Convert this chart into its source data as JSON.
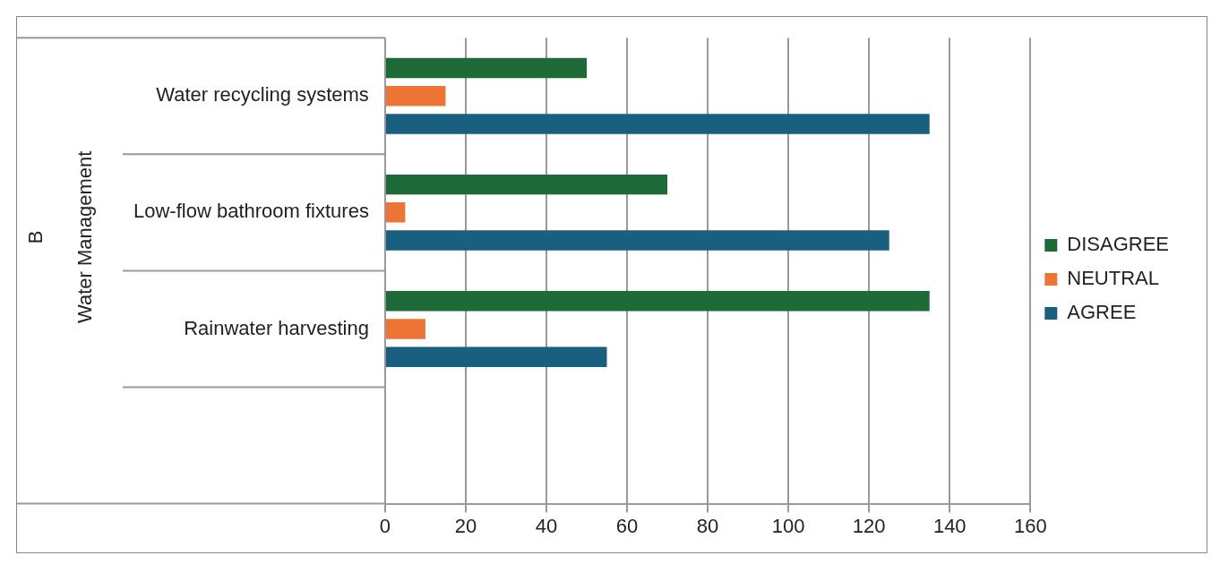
{
  "chart_data": {
    "type": "bar",
    "orientation": "horizontal",
    "annotations": [
      "B",
      "Water Management"
    ],
    "categories": [
      "Water recycling systems",
      "Low-flow bathroom fixtures",
      "Rainwater harvesting",
      null
    ],
    "series": [
      {
        "name": "DISAGREE",
        "color": "#1e6b37",
        "values": [
          50,
          70,
          135,
          null
        ]
      },
      {
        "name": "NEUTRAL",
        "color": "#ed7435",
        "values": [
          15,
          5,
          10,
          null
        ]
      },
      {
        "name": "AGREE",
        "color": "#185f80",
        "values": [
          135,
          125,
          55,
          null
        ]
      }
    ],
    "xlim": [
      0,
      160
    ],
    "xticks": [
      0,
      20,
      40,
      60,
      80,
      100,
      120,
      140,
      160
    ],
    "grid": "x",
    "legend": "right"
  }
}
